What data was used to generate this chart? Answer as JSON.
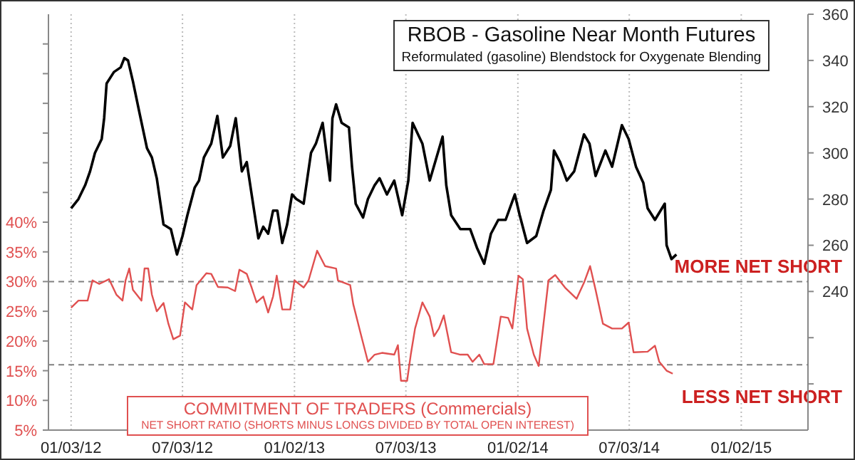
{
  "chart_data": {
    "type": "line",
    "title": "RBOB - Gasoline Near Month Futures",
    "subtitle": "Reformulated (gasoline) Blendstock for Oxygenate Blending",
    "annotations": [
      "NET SHORT RATIO (SHORTS MINUS LONGS DIVIDED BY TOTAL OPEN INTEREST)"
    ],
    "xlim": [
      "2011-11-27",
      "2015-04-21"
    ],
    "xticks": [
      {
        "value": "2012-01-03",
        "label": "01/03/12"
      },
      {
        "value": "2012-07-03",
        "label": "07/03/12"
      },
      {
        "value": "2013-01-02",
        "label": "01/02/13"
      },
      {
        "value": "2013-07-03",
        "label": "07/03/13"
      },
      {
        "value": "2014-01-02",
        "label": "01/02/14"
      },
      {
        "value": "2014-07-03",
        "label": "07/03/14"
      },
      {
        "value": "2015-01-02",
        "label": "01/02/15"
      }
    ],
    "ylim": [
      5,
      75
    ],
    "yticks": [
      {
        "value": 5,
        "label": "5%"
      },
      {
        "value": 10,
        "label": "10%"
      },
      {
        "value": 15,
        "label": "15%"
      },
      {
        "value": 20,
        "label": "20%"
      },
      {
        "value": 25,
        "label": "25%"
      },
      {
        "value": 30,
        "label": "30%"
      },
      {
        "value": 35,
        "label": "35%"
      },
      {
        "value": 40,
        "label": "40%"
      },
      {
        "value": 45,
        "label": null
      },
      {
        "value": 50,
        "label": null
      },
      {
        "value": 55,
        "label": null
      },
      {
        "value": 60,
        "label": null
      },
      {
        "value": 65,
        "label": null
      },
      {
        "value": 70,
        "label": null
      }
    ],
    "y2lim": [
      180,
      360
    ],
    "y2ticks": [
      {
        "value": 200,
        "label": null
      },
      {
        "value": 220,
        "label": null
      },
      240,
      260,
      280,
      300,
      320,
      340,
      360
    ],
    "grid": "x",
    "marker": "none",
    "line_style": "solid",
    "ref_lines": [
      {
        "axis": "y",
        "value": 30,
        "label": "MORE NET SHORT",
        "color": "#808080",
        "line_style": "dashed"
      },
      {
        "axis": "y",
        "value": 16,
        "label": "LESS NET SHORT",
        "color": "#808080",
        "line_style": "dashed"
      }
    ],
    "series": [
      {
        "axis": "y2",
        "color": "#000000",
        "x": [
          "2012-01-03",
          "2012-01-15",
          "2012-01-26",
          "2012-02-03",
          "2012-02-11",
          "2012-02-22",
          "2012-02-26",
          "2012-03-01",
          "2012-03-13",
          "2012-03-24",
          "2012-03-30",
          "2012-04-05",
          "2012-04-13",
          "2012-04-24",
          "2012-05-06",
          "2012-05-14",
          "2012-05-22",
          "2012-06-02",
          "2012-06-14",
          "2012-06-24",
          "2012-07-03",
          "2012-07-11",
          "2012-07-23",
          "2012-07-30",
          "2012-08-07",
          "2012-08-19",
          "2012-08-29",
          "2012-09-07",
          "2012-09-19",
          "2012-09-28",
          "2012-10-08",
          "2012-10-16",
          "2012-10-24",
          "2012-11-04",
          "2012-11-12",
          "2012-11-20",
          "2012-11-28",
          "2012-12-05",
          "2012-12-13",
          "2012-12-21",
          "2012-12-29",
          "2013-01-05",
          "2013-01-17",
          "2013-01-29",
          "2013-02-06",
          "2013-02-17",
          "2013-03-01",
          "2013-03-05",
          "2013-03-11",
          "2013-03-20",
          "2013-04-01",
          "2013-04-06",
          "2013-04-12",
          "2013-04-24",
          "2013-05-02",
          "2013-05-13",
          "2013-05-21",
          "2013-06-02",
          "2013-06-14",
          "2013-06-27",
          "2013-07-07",
          "2013-07-14",
          "2013-07-30",
          "2013-08-11",
          "2013-08-22",
          "2013-09-01",
          "2013-09-07",
          "2013-09-15",
          "2013-09-30",
          "2013-10-16",
          "2013-10-27",
          "2013-11-08",
          "2013-11-19",
          "2013-12-01",
          "2013-12-13",
          "2013-12-28",
          "2014-01-05",
          "2014-01-17",
          "2014-02-01",
          "2014-02-13",
          "2014-02-25",
          "2014-03-02",
          "2014-03-12",
          "2014-03-23",
          "2014-04-04",
          "2014-04-20",
          "2014-04-29",
          "2014-05-09",
          "2014-05-25",
          "2014-06-05",
          "2014-06-21",
          "2014-07-02",
          "2014-07-14",
          "2014-07-26",
          "2014-08-02",
          "2014-08-14",
          "2014-08-30",
          "2014-09-02",
          "2014-09-10",
          "2014-09-18"
        ],
        "values": [
          276,
          280,
          286,
          292,
          300,
          306,
          315,
          330,
          335,
          337,
          341,
          340,
          331,
          317,
          302,
          298,
          289,
          269,
          267,
          256,
          264,
          273,
          285,
          288,
          298,
          304,
          316,
          298,
          303,
          315,
          292,
          296,
          282,
          263,
          268,
          265,
          275,
          275,
          261,
          269,
          282,
          280,
          278,
          300,
          304,
          313,
          288,
          315,
          321,
          313,
          311,
          294,
          278,
          272,
          280,
          286,
          289,
          282,
          288,
          273,
          288,
          313,
          304,
          288,
          298,
          307,
          286,
          273,
          267,
          267,
          259,
          252,
          265,
          271,
          271,
          282,
          273,
          261,
          264,
          275,
          284,
          301,
          296,
          288,
          292,
          308,
          304,
          290,
          301,
          294,
          312,
          306,
          294,
          287,
          276,
          271,
          278,
          260,
          254,
          256
        ]
      },
      {
        "name": "COMMITMENT OF TRADERS (Commercials)",
        "axis": "y",
        "color": "#e05050",
        "x": [
          "2012-01-03",
          "2012-01-15",
          "2012-01-30",
          "2012-02-07",
          "2012-02-18",
          "2012-03-05",
          "2012-03-17",
          "2012-03-27",
          "2012-04-01",
          "2012-04-07",
          "2012-04-13",
          "2012-04-27",
          "2012-05-02",
          "2012-05-08",
          "2012-05-14",
          "2012-05-22",
          "2012-06-02",
          "2012-06-10",
          "2012-06-18",
          "2012-06-29",
          "2012-07-07",
          "2012-07-19",
          "2012-07-26",
          "2012-08-11",
          "2012-08-19",
          "2012-08-30",
          "2012-09-15",
          "2012-09-27",
          "2012-10-04",
          "2012-10-16",
          "2012-10-24",
          "2012-11-01",
          "2012-11-12",
          "2012-11-20",
          "2012-11-28",
          "2012-12-04",
          "2012-12-13",
          "2012-12-26",
          "2013-01-02",
          "2013-01-17",
          "2013-01-25",
          "2013-02-08",
          "2013-02-21",
          "2013-03-11",
          "2013-03-14",
          "2013-04-03",
          "2013-04-08",
          "2013-04-20",
          "2013-05-02",
          "2013-05-13",
          "2013-05-25",
          "2013-06-14",
          "2013-06-20",
          "2013-06-25",
          "2013-07-05",
          "2013-07-11",
          "2013-07-18",
          "2013-07-30",
          "2013-08-11",
          "2013-08-18",
          "2013-08-26",
          "2013-09-03",
          "2013-09-15",
          "2013-09-30",
          "2013-10-12",
          "2013-10-20",
          "2013-10-31",
          "2013-11-08",
          "2013-11-23",
          "2013-12-05",
          "2013-12-17",
          "2013-12-24",
          "2014-01-03",
          "2014-01-10",
          "2014-01-17",
          "2014-01-28",
          "2014-02-05",
          "2014-02-21",
          "2014-03-04",
          "2014-03-20",
          "2014-04-08",
          "2014-04-20",
          "2014-04-30",
          "2014-05-09",
          "2014-05-21",
          "2014-06-05",
          "2014-06-21",
          "2014-07-02",
          "2014-07-10",
          "2014-08-02",
          "2014-08-14",
          "2014-08-21",
          "2014-09-02",
          "2014-09-12"
        ],
        "values": [
          25.6,
          26.8,
          26.8,
          30.2,
          29.6,
          30.4,
          27.8,
          26.8,
          30.2,
          32.2,
          28.6,
          26.8,
          32.2,
          32.2,
          27.8,
          25,
          26.4,
          22.9,
          20.3,
          20.9,
          26.5,
          25.3,
          29.4,
          31.4,
          31.3,
          29.1,
          29,
          28.4,
          32,
          31.3,
          29,
          26.5,
          27.5,
          24.8,
          27.5,
          31,
          25.3,
          25.3,
          30.2,
          29,
          30.2,
          35.2,
          32.6,
          32.2,
          30.2,
          29.4,
          26.2,
          21.3,
          16.5,
          17.7,
          18,
          17.7,
          19.3,
          13.3,
          13.3,
          17.7,
          22.1,
          26.5,
          24.1,
          20.8,
          22.1,
          24.3,
          18.1,
          17.7,
          17.7,
          16.5,
          17.7,
          16.1,
          16.1,
          24.1,
          23.9,
          22.1,
          31,
          30.4,
          22.1,
          17.7,
          15.8,
          30.2,
          31.1,
          29,
          27.1,
          29.8,
          32.6,
          28.6,
          22.9,
          22.1,
          22.1,
          23.1,
          18.1,
          18.2,
          19.2,
          16.5,
          15,
          14.5
        ]
      }
    ]
  }
}
